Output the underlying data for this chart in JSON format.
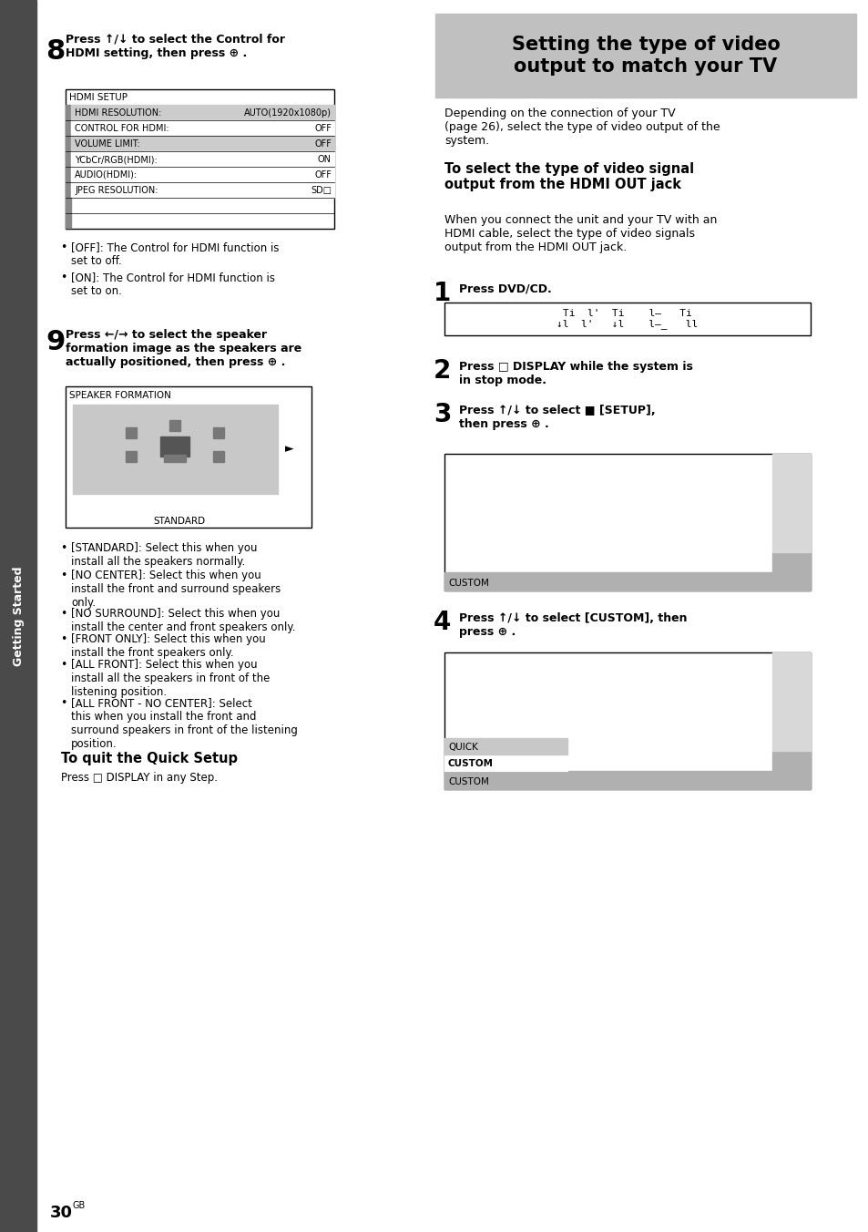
{
  "page_bg": "#ffffff",
  "sidebar_color": "#4a4a4a",
  "sidebar_text": "Getting Started",
  "title_box_color": "#c0c0c0",
  "right_title": "Setting the type of video\noutput to match your TV",
  "step8_header": "Press ↑/↓ to select the Control for\nHDMI setting, then press ⊕ .",
  "hdmi_table_header": "HDMI SETUP",
  "hdmi_table_rows": [
    [
      "HDMI RESOLUTION:",
      "AUTO(1920x1080p)",
      true
    ],
    [
      "CONTROL FOR HDMI:",
      "OFF",
      false
    ],
    [
      "VOLUME LIMIT:",
      "OFF",
      true
    ],
    [
      "YCbCr/RGB(HDMI):",
      "ON",
      false
    ],
    [
      "AUDIO(HDMI):",
      "OFF",
      false
    ],
    [
      "JPEG RESOLUTION:",
      "SD□",
      false
    ]
  ],
  "hdmi_table_empty_rows": 2,
  "bullet_off": "[OFF]: The Control for HDMI function is\nset to off.",
  "bullet_on": "[ON]: The Control for HDMI function is\nset to on.",
  "step9_header": "Press ←/→ to select the speaker\nformation image as the speakers are\nactually positioned, then press ⊕ .",
  "speaker_box_label": "SPEAKER FORMATION",
  "speaker_std_label": "STANDARD",
  "bullet_standard": "[STANDARD]: Select this when you\ninstall all the speakers normally.",
  "bullet_no_center": "[NO CENTER]: Select this when you\ninstall the front and surround speakers\nonly.",
  "bullet_no_surround": "[NO SURROUND]: Select this when you\ninstall the center and front speakers only.",
  "bullet_front_only": "[FRONT ONLY]: Select this when you\ninstall the front speakers only.",
  "bullet_all_front": "[ALL FRONT]: Select this when you\ninstall all the speakers in front of the\nlistening position.",
  "bullet_all_front_no_center": "[ALL FRONT - NO CENTER]: Select\nthis when you install the front and\nsurround speakers in front of the listening\nposition.",
  "quit_header": "To quit the Quick Setup",
  "quit_body": "Press □ DISPLAY in any Step.",
  "right_intro": "Depending on the connection of your TV\n(page 26), select the type of video output of the\nsystem.",
  "right_subheader": "To select the type of video signal\noutput from the HDMI OUT jack",
  "right_body1": "When you connect the unit and your TV with an\nHDMI cable, select the type of video signals\noutput from the HDMI OUT jack.",
  "step1_text": "Press DVD/CD.",
  "step2_text": "Press □ DISPLAY while the system is\nin stop mode.",
  "step3_text": "Press ↑/↓ to select ■ [SETUP],\nthen press ⊕ .",
  "step4_text": "Press ↑/↓ to select [CUSTOM], then\npress ⊕ ."
}
